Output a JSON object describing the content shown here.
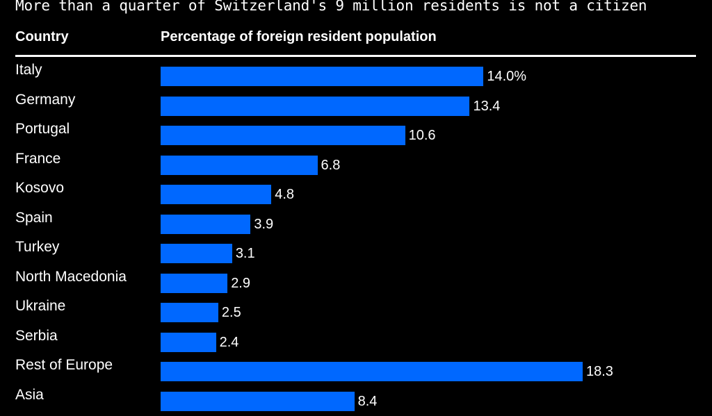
{
  "subtitle": "More than a quarter of Switzerland's 9 million residents is not a citizen",
  "colors": {
    "background": "#000000",
    "bar": "#0068ff",
    "text": "#ffffff"
  },
  "chart_data": {
    "type": "bar",
    "orientation": "horizontal",
    "column_headers": {
      "category": "Country",
      "value": "Percentage of foreign resident population"
    },
    "categories": [
      "Italy",
      "Germany",
      "Portugal",
      "France",
      "Kosovo",
      "Spain",
      "Turkey",
      "North Macedonia",
      "Ukraine",
      "Serbia",
      "Rest of Europe",
      "Asia"
    ],
    "values": [
      14.0,
      13.4,
      10.6,
      6.8,
      4.8,
      3.9,
      3.1,
      2.9,
      2.5,
      2.4,
      18.3,
      8.4
    ],
    "value_labels": [
      "14.0%",
      "13.4",
      "10.6",
      "6.8",
      "4.8",
      "3.9",
      "3.1",
      "2.9",
      "2.5",
      "2.4",
      "18.3",
      "8.4"
    ],
    "xlim": [
      0,
      18.3
    ],
    "unit": "%"
  }
}
